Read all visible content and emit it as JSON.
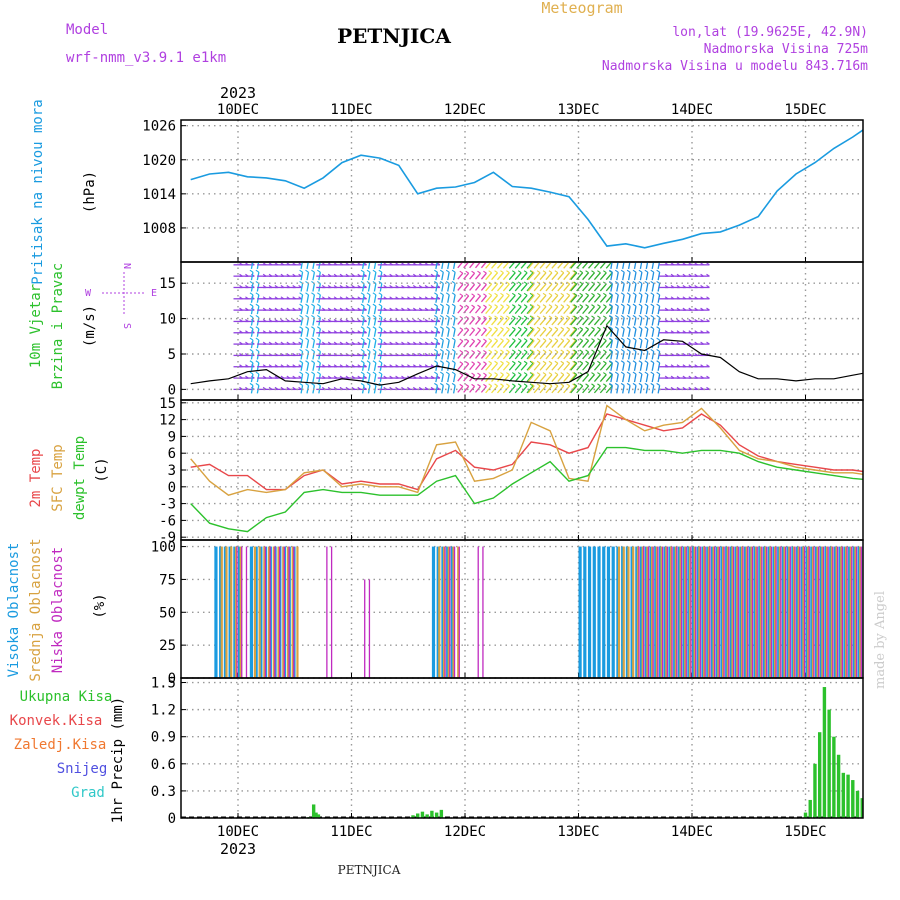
{
  "header": {
    "model_label": "Model",
    "model_name": "wrf-nmm_v3.9.1 e1km",
    "station": "PETNJICA",
    "product": "Meteogram",
    "coords": "lon,lat (19.9625E, 42.9N)",
    "elevation": "Nadmorska Visina 725m",
    "elevation_model": "Nadmorska Visina u modelu 843.716m",
    "year_top": "2023",
    "year_bottom": "2023",
    "footer_station": "PETNJICA",
    "credit": "made by Angel"
  },
  "colors": {
    "pressure": "#1a9be0",
    "temp2m": "#e8474a",
    "sfc": "#d8a240",
    "dewpt": "#2cc12c",
    "high_cloud": "#1a9be0",
    "mid_cloud": "#d8a240",
    "low_cloud": "#c02ac0",
    "total_precip": "#2cc12c",
    "conv_precip": "#e8474a",
    "freezing_precip": "#f07830",
    "snow": "#5050e0",
    "hail": "#30c8c8",
    "wind_speed": "#000000",
    "legend_purple": "#b040e0"
  },
  "chart_data": [
    {
      "type": "line",
      "panel": "pressure",
      "ylabel_lines": [
        "Pritisak na nivou mora"
      ],
      "unit": "(hPa)",
      "x_ticks": [
        "10DEC",
        "11DEC",
        "12DEC",
        "13DEC",
        "14DEC",
        "15DEC"
      ],
      "ylim": [
        1002,
        1027
      ],
      "y_ticks": [
        1008,
        1014,
        1020,
        1026
      ],
      "x_hours_from_10DEC": [
        -10,
        -6,
        -2,
        2,
        6,
        10,
        14,
        18,
        22,
        26,
        30,
        34,
        38,
        42,
        46,
        50,
        54,
        58,
        62,
        66,
        70,
        74,
        78,
        82,
        86,
        90,
        94,
        98,
        102,
        106,
        110,
        114,
        118,
        122,
        126,
        130,
        134
      ],
      "series": [
        {
          "name": "Sea-level pressure",
          "values": [
            1016.5,
            1017.5,
            1017.8,
            1017.0,
            1016.8,
            1016.3,
            1015.0,
            1016.8,
            1019.5,
            1020.8,
            1020.3,
            1019.0,
            1014.0,
            1015.0,
            1015.2,
            1016.0,
            1017.8,
            1015.3,
            1015.0,
            1014.3,
            1013.5,
            1009.5,
            1004.8,
            1005.2,
            1004.5,
            1005.3,
            1006.0,
            1007.0,
            1007.3,
            1008.5,
            1010.0,
            1014.5,
            1017.5,
            1019.5,
            1022.0,
            1024.0,
            1026.3
          ]
        }
      ]
    },
    {
      "type": "line",
      "panel": "wind",
      "ylabel_lines": [
        "10m Vjetar",
        "Brzina i Pravac"
      ],
      "unit": "(m/s)",
      "compass": [
        "N",
        "W",
        "E",
        "S"
      ],
      "ylim": [
        -1.5,
        18
      ],
      "y_ticks": [
        0,
        5,
        10,
        15
      ],
      "x_hours_from_10DEC": [
        -10,
        -6,
        -2,
        2,
        6,
        10,
        14,
        18,
        22,
        26,
        30,
        34,
        38,
        42,
        46,
        50,
        54,
        58,
        62,
        66,
        70,
        74,
        78,
        82,
        86,
        90,
        94,
        98,
        102,
        106,
        110,
        114,
        118,
        122,
        126,
        130,
        134
      ],
      "series": [
        {
          "name": "Wind speed",
          "values": [
            0.8,
            1.2,
            1.5,
            2.5,
            2.8,
            1.2,
            1.0,
            0.8,
            1.5,
            1.2,
            0.6,
            1.0,
            2.2,
            3.3,
            2.8,
            1.5,
            1.5,
            1.2,
            1.0,
            0.8,
            1.0,
            2.5,
            9.0,
            6.0,
            5.5,
            7.0,
            6.8,
            5.0,
            4.5,
            2.5,
            1.5,
            1.5,
            1.2,
            1.5,
            1.5,
            2.0,
            2.5
          ]
        }
      ],
      "wind_bands": [
        {
          "from": 0,
          "to": 3,
          "color": "#9040e0",
          "label": "westerly"
        },
        {
          "from": 3,
          "to": 5,
          "color": "#20b0e8",
          "label": "southerly"
        },
        {
          "from": 5,
          "to": 13.5,
          "color": "#9040e0",
          "label": "westerly"
        },
        {
          "from": 13.5,
          "to": 17.5,
          "color": "#20b0e8",
          "label": "southerly"
        },
        {
          "from": 17.5,
          "to": 26.5,
          "color": "#9040e0",
          "label": "westerly"
        },
        {
          "from": 26.5,
          "to": 30.5,
          "color": "#20b0e8",
          "label": "southerly"
        },
        {
          "from": 30.5,
          "to": 42,
          "color": "#9040e0",
          "label": "westerly"
        },
        {
          "from": 42,
          "to": 47,
          "color": "#20a0e0",
          "label": "southerly"
        },
        {
          "from": 47,
          "to": 53,
          "color": "#e040b0",
          "label": "mixed"
        },
        {
          "from": 53,
          "to": 58,
          "color": "#f0e040",
          "label": "strong"
        },
        {
          "from": 58,
          "to": 62,
          "color": "#20c040",
          "label": "strong"
        },
        {
          "from": 62,
          "to": 71,
          "color": "#e8d040",
          "label": "strong"
        },
        {
          "from": 71,
          "to": 79,
          "color": "#30b030",
          "label": "strong"
        },
        {
          "from": 79,
          "to": 90,
          "color": "#2090e0",
          "label": "southerly"
        },
        {
          "from": 90,
          "to": 100,
          "color": "#9040e0",
          "label": "westerly"
        }
      ]
    },
    {
      "type": "line",
      "panel": "temperature",
      "ylabel_lines": [
        "2m Temp",
        "SFC Temp",
        "dewpt Temp"
      ],
      "unit": "(C)",
      "ylim": [
        -9.5,
        15.5
      ],
      "y_ticks": [
        -9,
        -6,
        -3,
        0,
        3,
        6,
        9,
        12,
        15
      ],
      "x_hours_from_10DEC": [
        -10,
        -6,
        -2,
        2,
        6,
        10,
        14,
        18,
        22,
        26,
        30,
        34,
        38,
        42,
        46,
        50,
        54,
        58,
        62,
        66,
        70,
        74,
        78,
        82,
        86,
        90,
        94,
        98,
        102,
        106,
        110,
        114,
        118,
        122,
        126,
        130,
        134
      ],
      "series": [
        {
          "name": "2m Temp",
          "values": [
            3.5,
            4.0,
            2.0,
            2.0,
            -0.5,
            -0.5,
            2.0,
            3.0,
            0.5,
            1.0,
            0.5,
            0.5,
            -0.5,
            5.0,
            6.5,
            3.5,
            3.0,
            4.0,
            8.0,
            7.5,
            6.0,
            7.0,
            13.0,
            12.0,
            11.0,
            10.0,
            10.5,
            13.0,
            11.0,
            7.5,
            5.5,
            4.5,
            4.0,
            3.5,
            3.0,
            3.0,
            2.5
          ]
        },
        {
          "name": "SFC Temp",
          "values": [
            5.0,
            1.0,
            -1.5,
            -0.5,
            -1.0,
            -0.5,
            2.5,
            3.0,
            0.0,
            0.5,
            0.0,
            0.0,
            -1.0,
            7.5,
            8.0,
            1.0,
            1.5,
            3.0,
            11.5,
            10.0,
            1.5,
            1.0,
            14.5,
            12.0,
            10.0,
            11.0,
            11.5,
            14.0,
            10.5,
            6.5,
            5.0,
            4.5,
            3.5,
            3.0,
            2.5,
            2.5,
            2.0
          ]
        },
        {
          "name": "dewpt Temp",
          "values": [
            -3.0,
            -6.5,
            -7.5,
            -8.0,
            -5.5,
            -4.5,
            -1.0,
            -0.5,
            -1.0,
            -1.0,
            -1.5,
            -1.5,
            -1.5,
            1.0,
            2.0,
            -3.0,
            -2.0,
            0.5,
            2.5,
            4.5,
            1.0,
            2.0,
            7.0,
            7.0,
            6.5,
            6.5,
            6.0,
            6.5,
            6.5,
            6.0,
            4.5,
            3.5,
            3.0,
            2.5,
            2.0,
            1.5,
            1.2
          ]
        }
      ]
    },
    {
      "type": "bar",
      "panel": "cloud",
      "ylabel_lines": [
        "Visoka Oblacnost",
        "Srednja Oblacnost",
        "Niska Oblacnost"
      ],
      "unit": "(%)",
      "ylim": [
        0,
        105
      ],
      "y_ticks": [
        0,
        25,
        50,
        75,
        100
      ],
      "segments": [
        {
          "name": "Visoka Oblacnost",
          "from": -5,
          "to": 0,
          "value": 100
        },
        {
          "name": "Srednja Oblacnost",
          "from": -4,
          "to": 0,
          "value": 100
        },
        {
          "name": "Niska Oblacnost",
          "from": -1,
          "to": 1,
          "value": 100
        },
        {
          "name": "Visoka Oblacnost",
          "from": 2.5,
          "to": 12,
          "value": 100
        },
        {
          "name": "Srednja Oblacnost",
          "from": 3,
          "to": 12,
          "value": 100
        },
        {
          "name": "Niska Oblacnost",
          "from": 5,
          "to": 11,
          "value": 100
        },
        {
          "name": "Niska Oblacnost",
          "from": 18,
          "to": 19,
          "value": 100
        },
        {
          "name": "Niska Oblacnost",
          "from": 26,
          "to": 27,
          "value": 75
        },
        {
          "name": "Visoka Oblacnost",
          "from": 41,
          "to": 45.5,
          "value": 100
        },
        {
          "name": "Srednja Oblacnost",
          "from": 42,
          "to": 46,
          "value": 100
        },
        {
          "name": "Niska Oblacnost",
          "from": 43,
          "to": 46,
          "value": 100
        },
        {
          "name": "Niska Oblacnost",
          "from": 50,
          "to": 51,
          "value": 100
        },
        {
          "name": "Visoka Oblacnost",
          "from": 72,
          "to": 136,
          "value": 100
        },
        {
          "name": "Srednja Oblacnost",
          "from": 80,
          "to": 136,
          "value": 100
        },
        {
          "name": "Niska Oblacnost",
          "from": 84,
          "to": 136,
          "value": 100
        }
      ]
    },
    {
      "type": "bar",
      "panel": "precipitation",
      "ylabel_lines": [
        "1hr Precip"
      ],
      "unit": "(mm)",
      "legend": [
        "Ukupna Kisa",
        "Konvek.Kisa",
        "Zaledj.Kisa",
        "Snijeg",
        "Grad"
      ],
      "ylim": [
        0,
        1.55
      ],
      "y_ticks": [
        0,
        0.3,
        0.6,
        0.9,
        1.2,
        1.5
      ],
      "x_hours_from_10DEC": [
        15,
        16,
        16.5,
        17,
        37,
        38,
        39,
        40,
        41,
        42,
        43,
        120,
        121,
        122,
        123,
        124,
        125,
        126,
        127,
        128,
        129,
        130,
        131,
        132,
        133,
        134,
        135
      ],
      "series": [
        {
          "name": "Ukupna Kisa",
          "values": [
            0.01,
            0.15,
            0.06,
            0.04,
            0.03,
            0.05,
            0.07,
            0.04,
            0.08,
            0.06,
            0.09,
            0.06,
            0.2,
            0.6,
            0.95,
            1.45,
            1.2,
            0.9,
            0.7,
            0.5,
            0.48,
            0.42,
            0.3,
            0.22,
            0.15,
            0.25,
            0.2
          ]
        }
      ]
    }
  ]
}
